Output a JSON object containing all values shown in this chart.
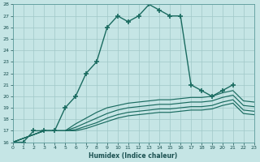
{
  "xlabel": "Humidex (Indice chaleur)",
  "bg_color": "#c5e5e5",
  "grid_color": "#a0c8c8",
  "line_color": "#1a6b60",
  "xlim": [
    0,
    23
  ],
  "ylim": [
    16,
    28
  ],
  "xticks": [
    0,
    1,
    2,
    3,
    4,
    5,
    6,
    7,
    8,
    9,
    10,
    11,
    12,
    13,
    14,
    15,
    16,
    17,
    18,
    19,
    20,
    21,
    22,
    23
  ],
  "yticks": [
    16,
    17,
    18,
    19,
    20,
    21,
    22,
    23,
    24,
    25,
    26,
    27,
    28
  ],
  "main_x": [
    0,
    1,
    2,
    3,
    4,
    5,
    6,
    7,
    8,
    9,
    10,
    11,
    12,
    13,
    14,
    15,
    16,
    17,
    18,
    19,
    20,
    21
  ],
  "main_y": [
    16,
    16,
    17,
    17,
    17,
    19,
    20,
    22,
    23,
    26,
    27,
    26.5,
    27,
    28,
    27.5,
    27,
    27,
    21,
    20.5,
    20,
    20.5,
    21
  ],
  "lower_lines": [
    {
      "x": [
        0,
        3,
        4,
        5,
        6,
        7,
        8,
        9,
        10,
        11,
        12,
        13,
        14,
        15,
        16,
        17,
        18,
        19,
        20,
        21,
        22,
        23
      ],
      "y": [
        16,
        17,
        17,
        17,
        17.6,
        18.1,
        18.6,
        19,
        19.2,
        19.4,
        19.5,
        19.6,
        19.7,
        19.7,
        19.8,
        19.9,
        19.9,
        20.0,
        20.3,
        20.5,
        19.6,
        19.5
      ]
    },
    {
      "x": [
        0,
        3,
        4,
        5,
        6,
        7,
        8,
        9,
        10,
        11,
        12,
        13,
        14,
        15,
        16,
        17,
        18,
        19,
        20,
        21,
        22,
        23
      ],
      "y": [
        16,
        17,
        17,
        17,
        17.3,
        17.7,
        18.1,
        18.5,
        18.8,
        19.0,
        19.1,
        19.2,
        19.3,
        19.3,
        19.4,
        19.5,
        19.5,
        19.6,
        19.9,
        20.1,
        19.2,
        19.1
      ]
    },
    {
      "x": [
        0,
        3,
        4,
        5,
        6,
        7,
        8,
        9,
        10,
        11,
        12,
        13,
        14,
        15,
        16,
        17,
        18,
        19,
        20,
        21,
        22,
        23
      ],
      "y": [
        16,
        17,
        17,
        17,
        17.1,
        17.4,
        17.7,
        18.1,
        18.4,
        18.6,
        18.7,
        18.8,
        18.9,
        18.9,
        19.0,
        19.1,
        19.1,
        19.2,
        19.5,
        19.7,
        18.8,
        18.7
      ]
    },
    {
      "x": [
        0,
        3,
        4,
        5,
        6,
        7,
        8,
        9,
        10,
        11,
        12,
        13,
        14,
        15,
        16,
        17,
        18,
        19,
        20,
        21,
        22,
        23
      ],
      "y": [
        16,
        17,
        17,
        17,
        17.0,
        17.2,
        17.5,
        17.8,
        18.1,
        18.3,
        18.4,
        18.5,
        18.6,
        18.6,
        18.7,
        18.8,
        18.8,
        18.9,
        19.2,
        19.4,
        18.5,
        18.4
      ]
    }
  ]
}
